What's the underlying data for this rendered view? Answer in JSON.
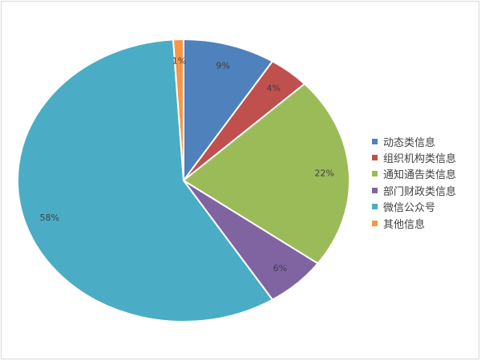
{
  "chart_data": {
    "type": "pie",
    "title": "",
    "legend_position": "right",
    "slices": [
      {
        "label": "动态类信息",
        "value": 9,
        "value_label": "9%",
        "color": "#4f81bd"
      },
      {
        "label": "组织机构类信息",
        "value": 4,
        "value_label": "4%",
        "color": "#c0504d"
      },
      {
        "label": "通知通告类信息",
        "value": 22,
        "value_label": "22%",
        "color": "#9bbb59"
      },
      {
        "label": "部门财政类信息",
        "value": 6,
        "value_label": "6%",
        "color": "#8064a2"
      },
      {
        "label": "微信公众号",
        "value": 58,
        "value_label": "58%",
        "color": "#4bacc6"
      },
      {
        "label": "其他信息",
        "value": 1,
        "value_label": "1%",
        "color": "#f79646"
      }
    ]
  }
}
